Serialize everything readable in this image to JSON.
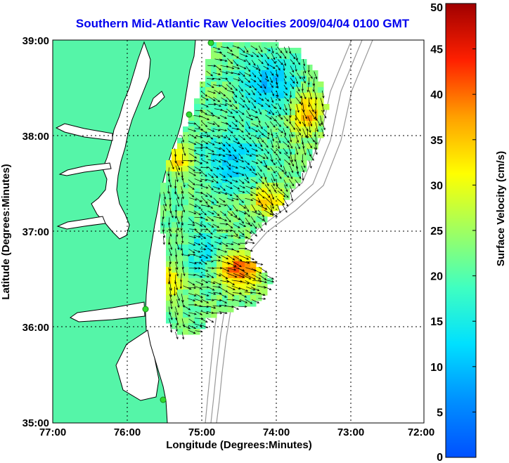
{
  "title": "Southern Mid-Atlantic Raw Velocities 2009/04/04 0100 GMT",
  "x_axis": {
    "label": "Longitude (Degrees:Minutes)",
    "ticks": [
      "77:00",
      "76:00",
      "75:00",
      "74:00",
      "73:00",
      "72:00"
    ]
  },
  "y_axis": {
    "label": "Latitude (Degrees:Minutes)",
    "ticks": [
      "39:00",
      "38:00",
      "37:00",
      "36:00",
      "35:00"
    ]
  },
  "colorbar": {
    "label": "Surface Velocity (cm/s)",
    "ticks": [
      "50",
      "45",
      "40",
      "35",
      "30",
      "25",
      "20",
      "15",
      "10",
      "5",
      "0"
    ],
    "min": 0,
    "max": 50,
    "colormap": "jet"
  },
  "colors": {
    "land": "#55f5a8",
    "coast": "#000000",
    "bathymetry": "#999999",
    "sites": "#2fdc2f",
    "title": "#0000ee",
    "vectors": "#000000"
  },
  "map": {
    "lon_range": [
      -77,
      -72
    ],
    "lat_range": [
      35,
      39
    ],
    "grid": "dotted"
  }
}
